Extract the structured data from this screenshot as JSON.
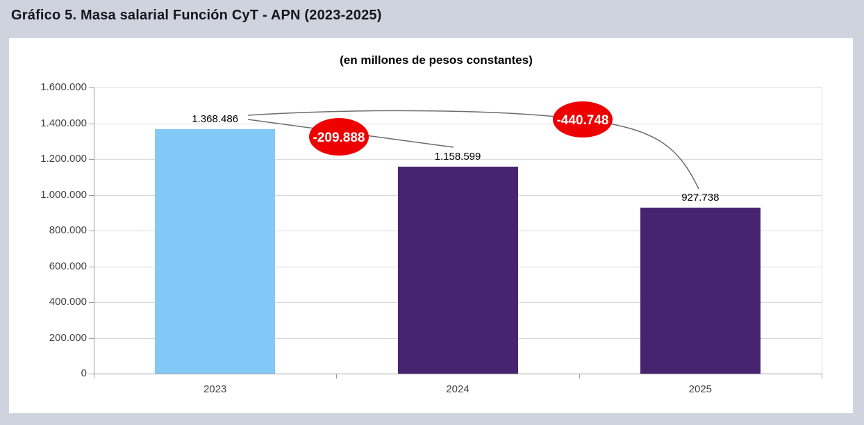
{
  "header": {
    "title": "Gráfico 5. Masa salarial Función CyT - APN (2023-2025)"
  },
  "chart_data": {
    "type": "bar",
    "title": "Gráfico 5. Masa salarial Función CyT - APN (2023-2025)",
    "subtitle": "(en millones de pesos constantes)",
    "categories": [
      "2023",
      "2024",
      "2025"
    ],
    "values": [
      1368486,
      1158599,
      927738
    ],
    "value_labels": [
      "1.368.486",
      "1.158.599",
      "927.738"
    ],
    "bar_colors": [
      "#83C9F8",
      "#47246F",
      "#47246F"
    ],
    "xlabel": "",
    "ylabel": "",
    "ylim": [
      0,
      1600000
    ],
    "ytick_step": 200000,
    "ytick_labels": [
      "0",
      "200.000",
      "400.000",
      "600.000",
      "800.000",
      "1.000.000",
      "1.200.000",
      "1.400.000",
      "1.600.000"
    ],
    "grid": true,
    "legend": "none",
    "annotations": [
      {
        "label": "-209.888",
        "color": "#EE0000",
        "from": "2023",
        "to": "2024"
      },
      {
        "label": "-440.748",
        "color": "#EE0000",
        "from": "2023",
        "to": "2025"
      }
    ],
    "colors": {
      "background": "#CFD3DE",
      "panel": "#FFFFFF",
      "gridline": "#D9D9D9",
      "axis": "#9B9B9B",
      "connector": "#6B6B6B",
      "annotation_fill": "#EE0000",
      "annotation_text": "#FFFFFF"
    }
  }
}
